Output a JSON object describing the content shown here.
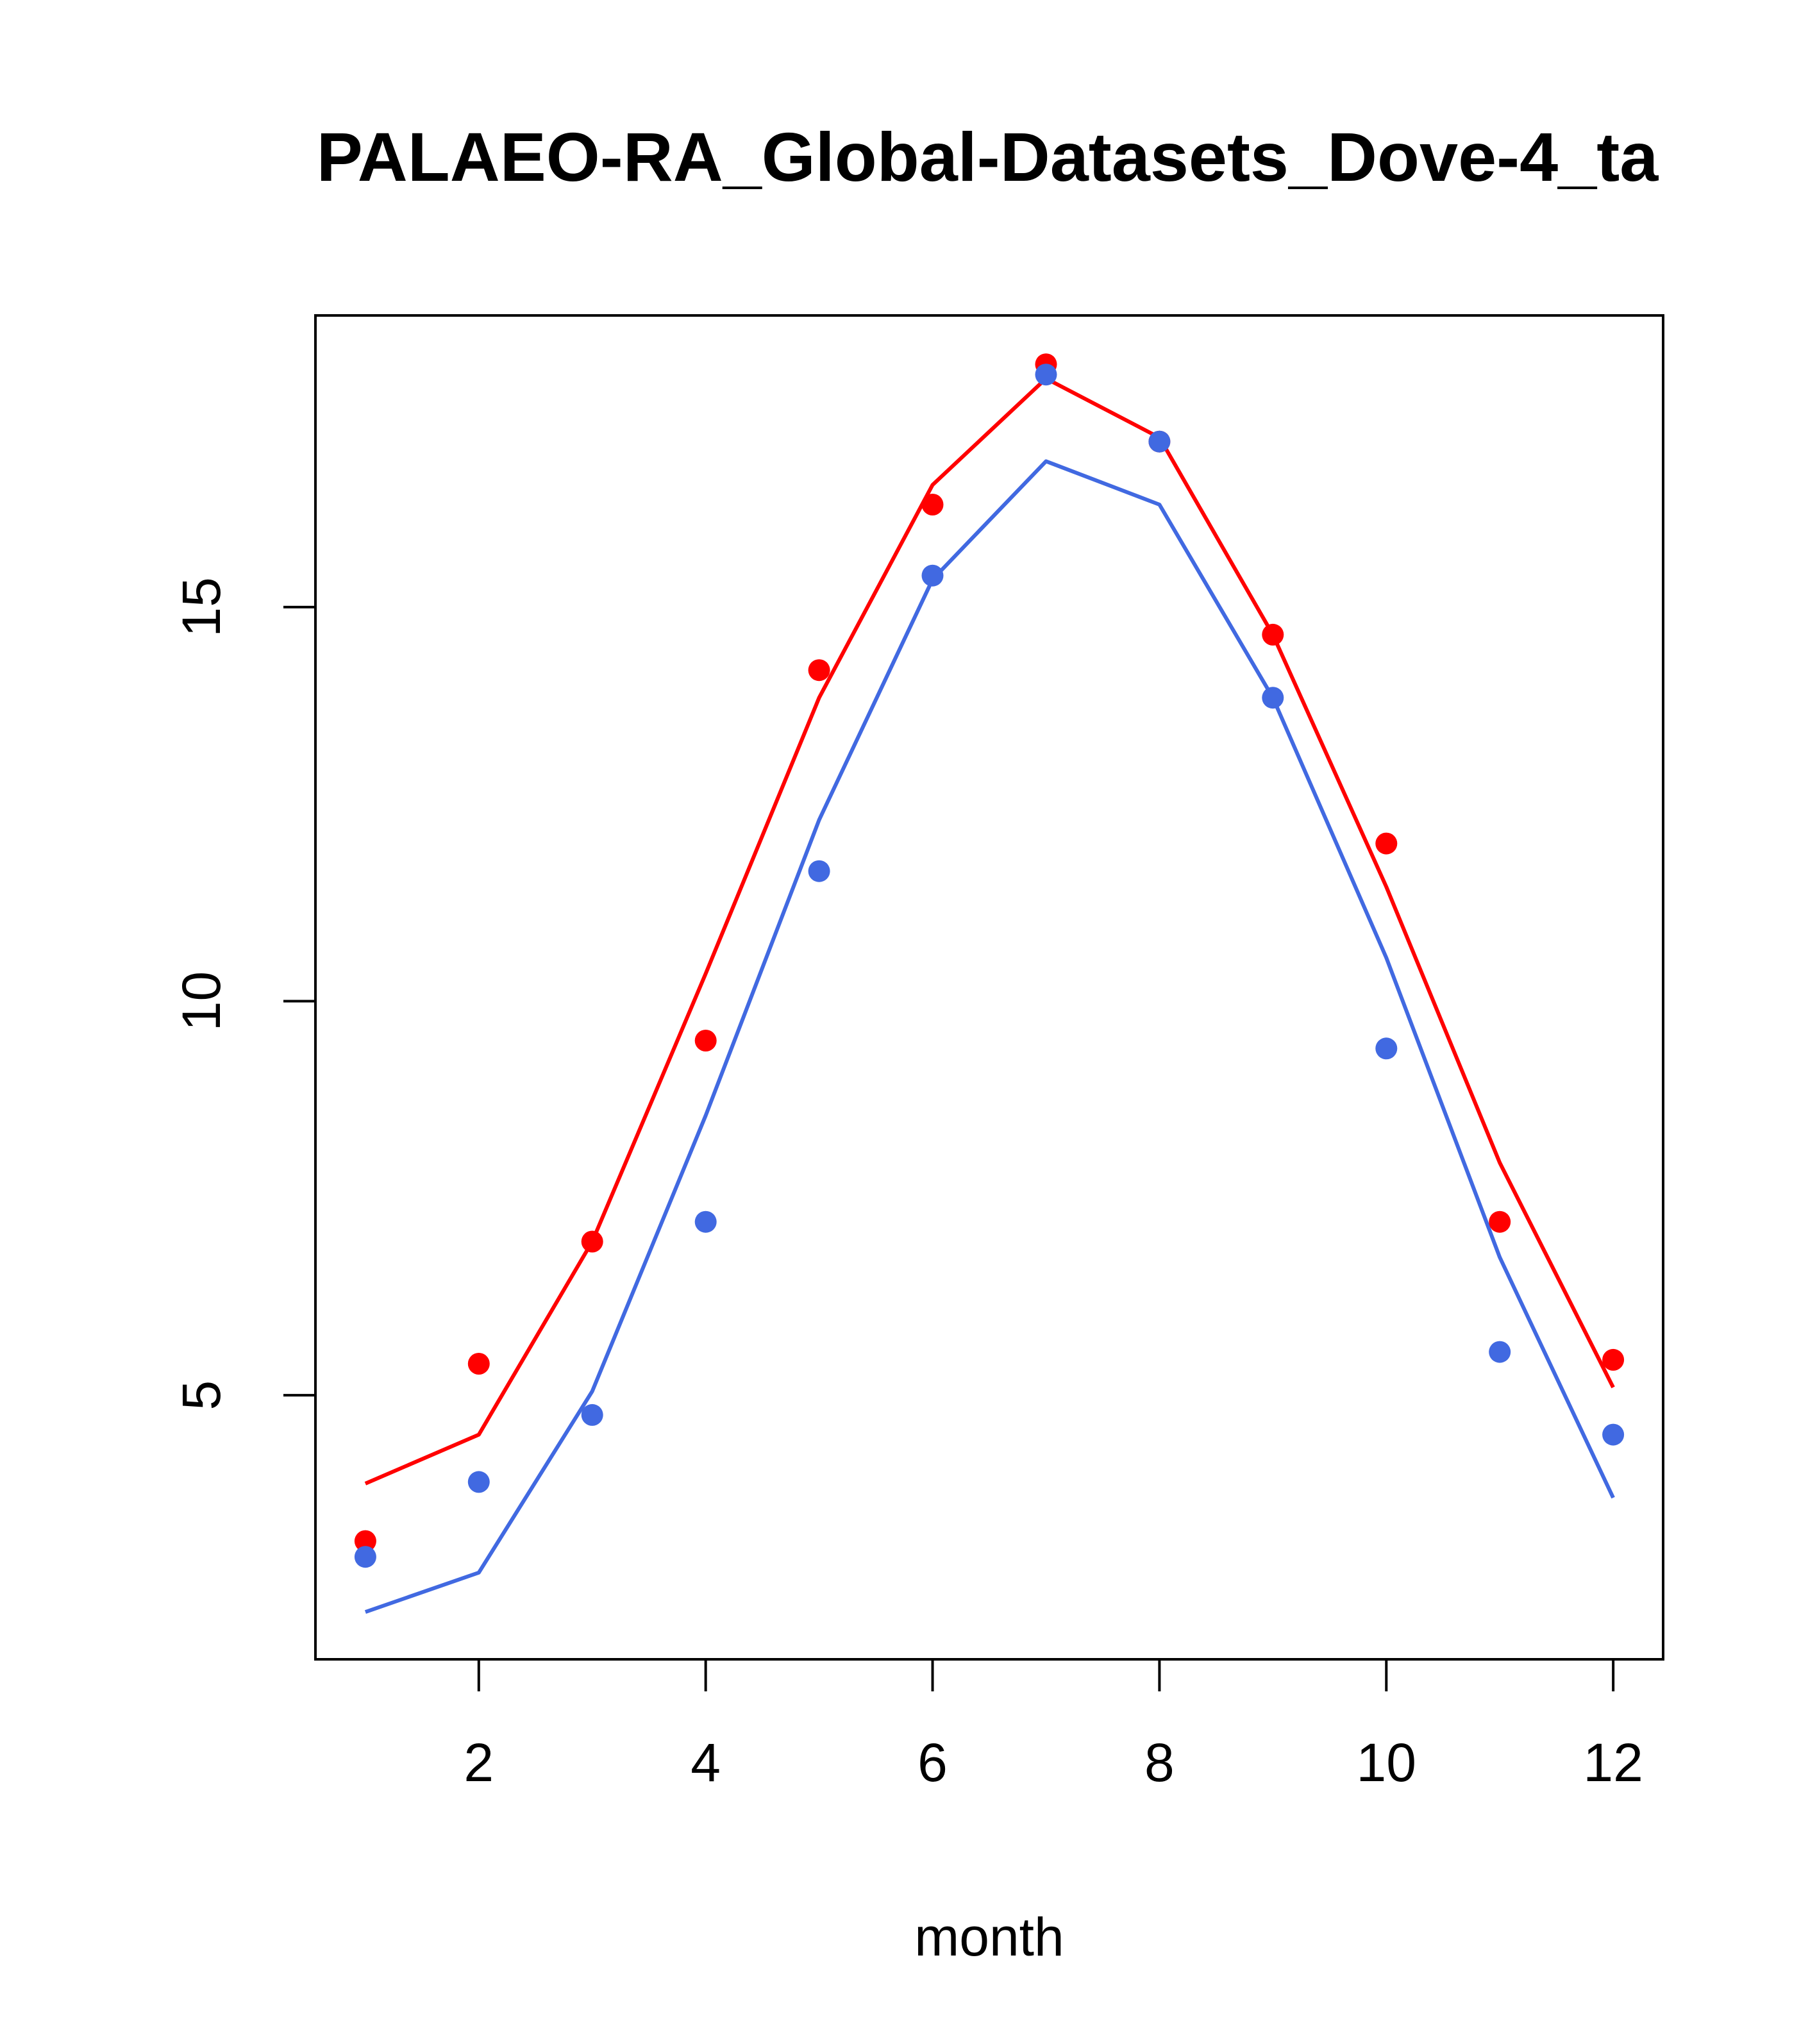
{
  "chart_data": {
    "type": "line",
    "title": "PALAEO-RA_Global-Datasets_Dove-4_ta",
    "xlabel": "month",
    "ylabel": "",
    "x": [
      1,
      2,
      3,
      4,
      5,
      6,
      7,
      8,
      9,
      10,
      11,
      12
    ],
    "xlim": [
      0.56,
      12.44
    ],
    "ylim": [
      1.65,
      18.7
    ],
    "xticks": [
      2,
      4,
      6,
      8,
      10,
      12
    ],
    "xtick_labels": [
      "2",
      "4",
      "6",
      "8",
      "10",
      "12"
    ],
    "yticks": [
      5,
      10,
      15
    ],
    "ytick_labels": [
      "5",
      "10",
      "15"
    ],
    "grid": false,
    "series": [
      {
        "name": "red-line",
        "kind": "line",
        "color": "#ff0000",
        "values": [
          3.88,
          4.5,
          6.95,
          10.35,
          13.85,
          16.55,
          17.9,
          17.15,
          14.65,
          11.45,
          7.95,
          5.1
        ]
      },
      {
        "name": "blue-line",
        "kind": "line",
        "color": "#4169e1",
        "values": [
          2.25,
          2.75,
          5.05,
          8.55,
          12.3,
          15.35,
          16.85,
          16.3,
          13.85,
          10.55,
          6.75,
          3.7
        ]
      },
      {
        "name": "red-points",
        "kind": "points",
        "color": "#ff0000",
        "values": [
          3.15,
          5.4,
          6.95,
          9.5,
          14.2,
          16.3,
          18.08,
          17.1,
          14.65,
          12.0,
          7.2,
          5.45
        ]
      },
      {
        "name": "blue-points",
        "kind": "points",
        "color": "#4169e1",
        "values": [
          2.95,
          3.9,
          4.75,
          7.2,
          11.65,
          15.4,
          17.95,
          17.1,
          13.85,
          9.4,
          5.55,
          4.5
        ]
      }
    ]
  }
}
